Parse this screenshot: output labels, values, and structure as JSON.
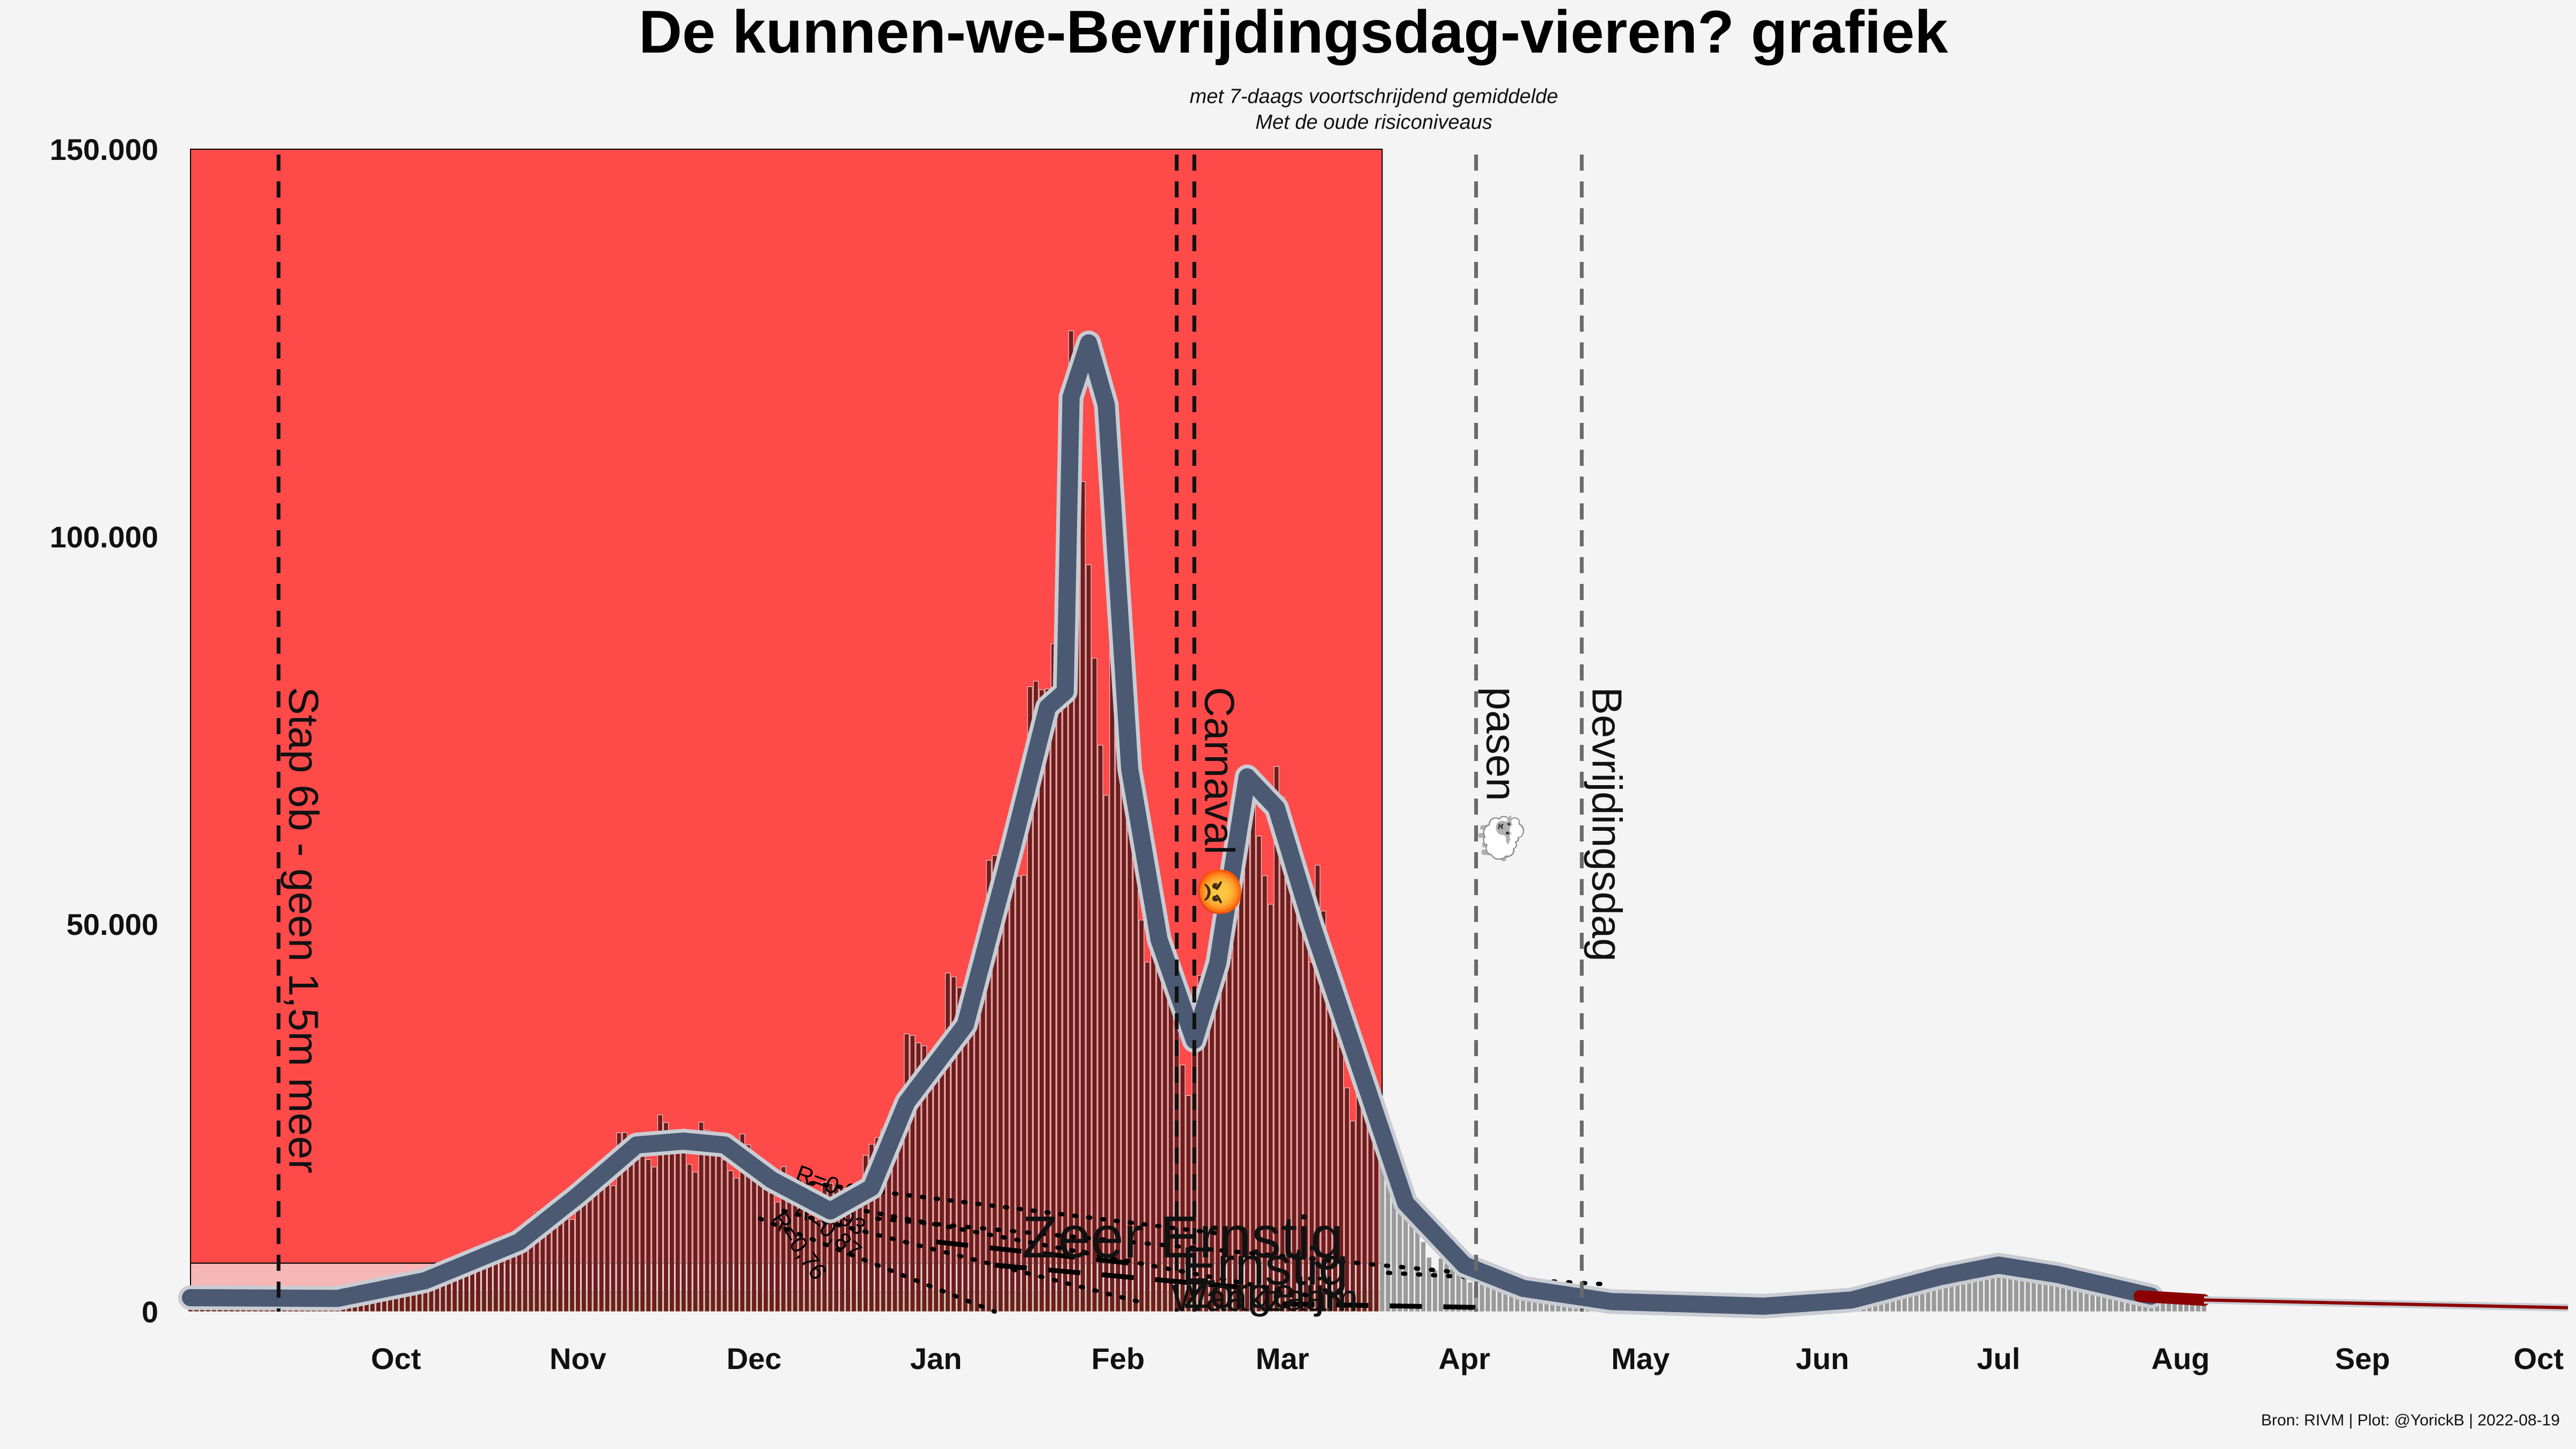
{
  "chart_data": {
    "type": "bar",
    "title": "De kunnen-we-Bevrijdingsdag-vieren? grafiek",
    "subtitle_lines": [
      "met 7-daags voortschrijdend gemiddelde",
      "Met de oude risiconiveaus"
    ],
    "x_range": [
      "2021-09-10",
      "2022-10-20"
    ],
    "month_ticks": [
      {
        "label": "Oct",
        "date": "2021-10-15"
      },
      {
        "label": "Nov",
        "date": "2021-11-15"
      },
      {
        "label": "Dec",
        "date": "2021-12-15"
      },
      {
        "label": "Jan",
        "date": "2022-01-15"
      },
      {
        "label": "Feb",
        "date": "2022-02-15"
      },
      {
        "label": "Mar",
        "date": "2022-03-15"
      },
      {
        "label": "Apr",
        "date": "2022-04-15"
      },
      {
        "label": "May",
        "date": "2022-05-15"
      },
      {
        "label": "Jun",
        "date": "2022-06-15"
      },
      {
        "label": "Jul",
        "date": "2022-07-15"
      },
      {
        "label": "Aug",
        "date": "2022-08-15"
      },
      {
        "label": "Sep",
        "date": "2022-09-15"
      },
      {
        "label": "Oct",
        "date": "2022-10-15"
      }
    ],
    "ylim": [
      0,
      150000
    ],
    "y_ticks": [
      {
        "value": 0,
        "label": "0"
      },
      {
        "value": 50000,
        "label": "50.000"
      },
      {
        "value": 100000,
        "label": "100.000"
      },
      {
        "value": 150000,
        "label": "150.000"
      }
    ],
    "risk_zone": {
      "end_date": "2022-04-01",
      "threshold": 6250,
      "color_top": "#ff4a4a",
      "color_mid": "#f6b7b7",
      "color_low": "#b3a76b"
    },
    "bar_colors": {
      "in_zone": "#6e1d1d",
      "after_zone": "#9a9a9a",
      "outline": "#e8e8e8"
    },
    "line_color": "#4b5a72",
    "projection_color": "#8b0000",
    "daily_anchors": [
      {
        "date": "2021-09-10",
        "value": 1900
      },
      {
        "date": "2021-10-01",
        "value": 1700
      },
      {
        "date": "2021-10-10",
        "value": 2500
      },
      {
        "date": "2021-10-20",
        "value": 4500
      },
      {
        "date": "2021-11-01",
        "value": 8000
      },
      {
        "date": "2021-11-15",
        "value": 15000
      },
      {
        "date": "2021-11-25",
        "value": 23000
      },
      {
        "date": "2021-12-01",
        "value": 22500
      },
      {
        "date": "2021-12-12",
        "value": 21000
      },
      {
        "date": "2021-12-25",
        "value": 14000
      },
      {
        "date": "2022-01-03",
        "value": 18000
      },
      {
        "date": "2022-01-10",
        "value": 32000
      },
      {
        "date": "2022-01-20",
        "value": 42000
      },
      {
        "date": "2022-01-28",
        "value": 62000
      },
      {
        "date": "2022-02-03",
        "value": 82000
      },
      {
        "date": "2022-02-06",
        "value": 117000
      },
      {
        "date": "2022-02-09",
        "value": 105000
      },
      {
        "date": "2022-02-12",
        "value": 85000
      },
      {
        "date": "2022-02-20",
        "value": 55000
      },
      {
        "date": "2022-02-27",
        "value": 34000
      },
      {
        "date": "2022-03-10",
        "value": 68000
      },
      {
        "date": "2022-03-20",
        "value": 55000
      },
      {
        "date": "2022-03-27",
        "value": 30000
      },
      {
        "date": "2022-04-03",
        "value": 18000
      },
      {
        "date": "2022-04-10",
        "value": 6500
      },
      {
        "date": "2022-04-20",
        "value": 3000
      },
      {
        "date": "2022-05-05",
        "value": 1500
      },
      {
        "date": "2022-06-01",
        "value": 700
      },
      {
        "date": "2022-06-20",
        "value": 1500
      },
      {
        "date": "2022-07-10",
        "value": 6200
      },
      {
        "date": "2022-07-20",
        "value": 5000
      },
      {
        "date": "2022-08-10",
        "value": 2200
      },
      {
        "date": "2022-08-19",
        "value": 1500
      }
    ],
    "avg_anchors": [
      {
        "date": "2021-09-10",
        "value": 1800
      },
      {
        "date": "2021-10-05",
        "value": 1700
      },
      {
        "date": "2021-10-20",
        "value": 4000
      },
      {
        "date": "2021-11-05",
        "value": 9000
      },
      {
        "date": "2021-11-15",
        "value": 15000
      },
      {
        "date": "2021-11-25",
        "value": 21500
      },
      {
        "date": "2021-12-03",
        "value": 22000
      },
      {
        "date": "2021-12-10",
        "value": 21500
      },
      {
        "date": "2021-12-18",
        "value": 17000
      },
      {
        "date": "2021-12-28",
        "value": 13000
      },
      {
        "date": "2022-01-04",
        "value": 16000
      },
      {
        "date": "2022-01-10",
        "value": 27000
      },
      {
        "date": "2022-01-20",
        "value": 37000
      },
      {
        "date": "2022-01-28",
        "value": 60000
      },
      {
        "date": "2022-02-03",
        "value": 78000
      },
      {
        "date": "2022-02-06",
        "value": 80000
      },
      {
        "date": "2022-02-07",
        "value": 118000
      },
      {
        "date": "2022-02-10",
        "value": 125000
      },
      {
        "date": "2022-02-13",
        "value": 117000
      },
      {
        "date": "2022-02-17",
        "value": 70000
      },
      {
        "date": "2022-02-22",
        "value": 48000
      },
      {
        "date": "2022-02-28",
        "value": 35000
      },
      {
        "date": "2022-03-04",
        "value": 45000
      },
      {
        "date": "2022-03-09",
        "value": 69000
      },
      {
        "date": "2022-03-14",
        "value": 65000
      },
      {
        "date": "2022-03-20",
        "value": 50000
      },
      {
        "date": "2022-03-28",
        "value": 32000
      },
      {
        "date": "2022-04-05",
        "value": 14000
      },
      {
        "date": "2022-04-15",
        "value": 6000
      },
      {
        "date": "2022-04-25",
        "value": 3000
      },
      {
        "date": "2022-05-10",
        "value": 1300
      },
      {
        "date": "2022-06-05",
        "value": 700
      },
      {
        "date": "2022-06-20",
        "value": 1500
      },
      {
        "date": "2022-07-05",
        "value": 4500
      },
      {
        "date": "2022-07-15",
        "value": 6000
      },
      {
        "date": "2022-07-25",
        "value": 4800
      },
      {
        "date": "2022-08-10",
        "value": 2000
      }
    ],
    "projection_segment": [
      {
        "date": "2022-08-08",
        "value": 2000
      },
      {
        "date": "2022-08-19",
        "value": 1500
      }
    ],
    "projection_fade": [
      {
        "date": "2022-08-19",
        "value": 1500
      },
      {
        "date": "2022-10-20",
        "value": 500
      }
    ],
    "event_lines": [
      {
        "date": "2021-09-25",
        "label": "Stap 6b - geen 1,5m meer",
        "style": "black"
      },
      {
        "date": "2022-02-25",
        "label": "",
        "style": "black"
      },
      {
        "date": "2022-02-28",
        "label": "Carnaval 😡",
        "style": "black"
      },
      {
        "date": "2022-04-17",
        "label": "pasen 🐑",
        "style": "grey"
      },
      {
        "date": "2022-05-05",
        "label": "Bevrijdingsdag",
        "style": "grey"
      }
    ],
    "r_labels": [
      {
        "text": "R=0,96",
        "start_date": "2021-12-20",
        "start_value": 17000,
        "end_date": "2022-03-05",
        "end_value": 10000
      },
      {
        "text": "R=0,93",
        "start_date": "2021-12-20",
        "start_value": 15000,
        "end_date": "2022-03-20",
        "end_value": 2000
      },
      {
        "text": "R=0,87",
        "start_date": "2021-12-20",
        "start_value": 13000,
        "end_date": "2022-02-20",
        "end_value": 1000
      },
      {
        "text": "R=0,76",
        "start_date": "2021-12-16",
        "start_value": 12000,
        "end_date": "2022-01-25",
        "end_value": 0
      }
    ],
    "scenario_lines": [
      {
        "start_date": "2022-01-05",
        "start_value": 12000,
        "end_date": "2022-04-15",
        "end_value": 5000
      },
      {
        "start_date": "2022-04-02",
        "start_value": 5000,
        "end_date": "2022-05-10",
        "end_value": 3500
      }
    ],
    "level_labels": [
      {
        "text": "Zeer Ernstig",
        "date": "2022-02-26",
        "value": 7000,
        "size": 110
      },
      {
        "text": "Ernstig",
        "date": "2022-03-12",
        "value": 3500,
        "size": 100
      },
      {
        "text": "Zorgelijk",
        "date": "2022-03-12",
        "value": 500,
        "size": 80
      },
      {
        "text": "Waakzaam",
        "date": "2022-03-12",
        "value": 100,
        "size": 70
      }
    ],
    "dash_lines": [
      {
        "start_date": "2022-01-15",
        "start_value": 9000,
        "end_date": "2022-02-20",
        "end_value": 6000
      },
      {
        "start_date": "2022-01-25",
        "start_value": 6000,
        "end_date": "2022-03-10",
        "end_value": 3000
      },
      {
        "start_date": "2022-03-15",
        "start_value": 1000,
        "end_date": "2022-04-20",
        "end_value": 500
      }
    ]
  },
  "footer": "Bron: RIVM | Plot: @YorickB  |  2022-08-19"
}
